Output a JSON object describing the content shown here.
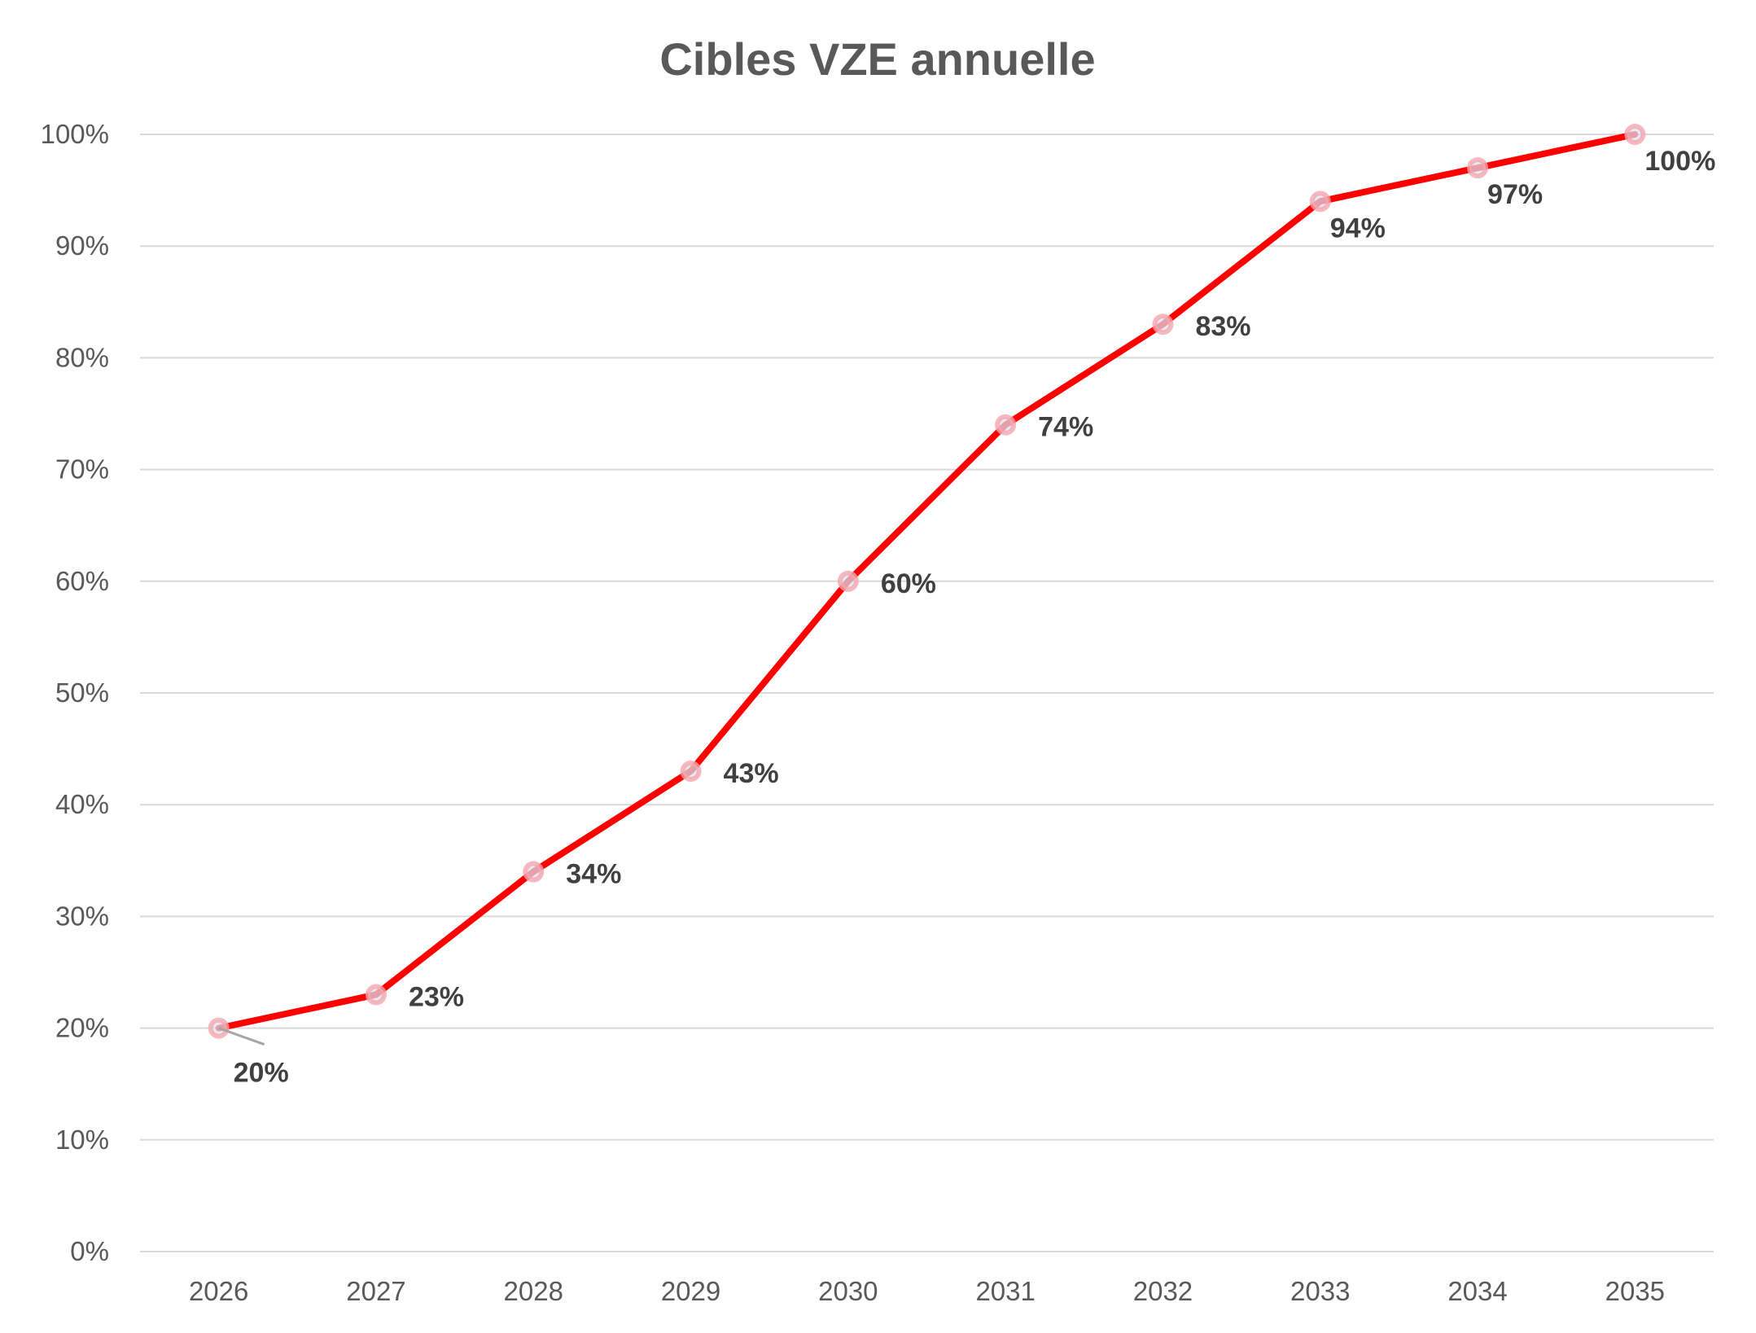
{
  "chart_data": {
    "type": "line",
    "title": "Cibles VZE annuelle",
    "xlabel": "",
    "ylabel": "",
    "categories": [
      "2026",
      "2027",
      "2028",
      "2029",
      "2030",
      "2031",
      "2032",
      "2033",
      "2034",
      "2035"
    ],
    "series": [
      {
        "values": [
          20,
          23,
          34,
          43,
          60,
          74,
          83,
          94,
          97,
          100
        ],
        "labels": [
          "20%",
          "23%",
          "34%",
          "43%",
          "60%",
          "74%",
          "83%",
          "94%",
          "97%",
          "100%"
        ]
      }
    ],
    "ylim": [
      0,
      100
    ],
    "yticks": [
      "0%",
      "10%",
      "20%",
      "30%",
      "40%",
      "50%",
      "60%",
      "70%",
      "80%",
      "90%",
      "100%"
    ],
    "grid": true,
    "legend": "none",
    "colors": {
      "line": "#FF0000",
      "marker": "#F4A6AE",
      "grid": "#D9D9D9",
      "text": "#595959",
      "label": "#404040"
    }
  }
}
